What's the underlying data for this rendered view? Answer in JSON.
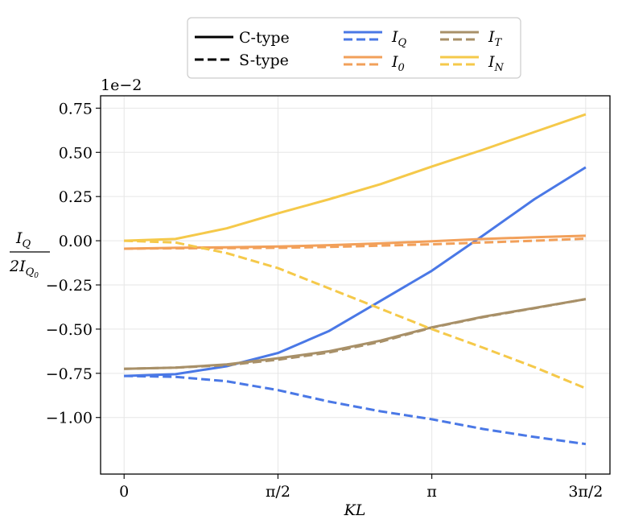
{
  "chart_data": {
    "type": "line",
    "xlabel": "KL",
    "ylabel": {
      "numerator": "I",
      "numerator_sub": "Q",
      "denominator": "2I",
      "denominator_sub": "Q",
      "denominator_subsub": "0"
    },
    "offset_text": "1e−2",
    "x_ticks": [
      {
        "value": 0,
        "label": "0"
      },
      {
        "value": 1.5708,
        "label": "π/2"
      },
      {
        "value": 3.1416,
        "label": "π"
      },
      {
        "value": 4.7124,
        "label": "3π/2"
      }
    ],
    "y_ticks": [
      {
        "value": 0.75,
        "label": "0.75"
      },
      {
        "value": 0.5,
        "label": "0.50"
      },
      {
        "value": 0.25,
        "label": "0.25"
      },
      {
        "value": 0.0,
        "label": "0.00"
      },
      {
        "value": -0.25,
        "label": "−0.25"
      },
      {
        "value": -0.5,
        "label": "−0.50"
      },
      {
        "value": -0.75,
        "label": "−0.75"
      },
      {
        "value": -1.0,
        "label": "−1.00"
      }
    ],
    "xlim": [
      -0.24,
      4.96
    ],
    "ylim": [
      -1.32,
      0.82
    ],
    "grid": true,
    "legend": {
      "placement": "top-center",
      "style_entries": [
        {
          "label": "C-type",
          "dash": "solid"
        },
        {
          "label": "S-type",
          "dash": "dashed"
        }
      ]
    },
    "x": [
      0,
      0.5236,
      1.0472,
      1.5708,
      2.0944,
      2.618,
      3.1416,
      3.6652,
      4.1888,
      4.7124
    ],
    "series": [
      {
        "name": "I",
        "sub": "Q",
        "color": "#4a78e6",
        "style": "solid",
        "values": [
          -0.765,
          -0.755,
          -0.71,
          -0.635,
          -0.51,
          -0.34,
          -0.17,
          0.03,
          0.235,
          0.415
        ]
      },
      {
        "name": "I",
        "sub": "Q",
        "color": "#4a78e6",
        "style": "dashed",
        "values": [
          -0.765,
          -0.77,
          -0.795,
          -0.845,
          -0.91,
          -0.965,
          -1.01,
          -1.065,
          -1.11,
          -1.15
        ]
      },
      {
        "name": "I",
        "sub": "0",
        "color": "#f2a05a",
        "style": "solid",
        "values": [
          -0.045,
          -0.04,
          -0.037,
          -0.033,
          -0.025,
          -0.015,
          -0.003,
          0.01,
          0.02,
          0.028
        ]
      },
      {
        "name": "I",
        "sub": "0",
        "color": "#f2a05a",
        "style": "dashed",
        "values": [
          -0.045,
          -0.043,
          -0.042,
          -0.04,
          -0.035,
          -0.028,
          -0.02,
          -0.01,
          0.0,
          0.012
        ]
      },
      {
        "name": "I",
        "sub": "T",
        "color": "#a89068",
        "style": "solid",
        "values": [
          -0.725,
          -0.718,
          -0.7,
          -0.665,
          -0.625,
          -0.565,
          -0.49,
          -0.43,
          -0.38,
          -0.33
        ]
      },
      {
        "name": "I",
        "sub": "T",
        "color": "#a89068",
        "style": "dashed",
        "values": [
          -0.725,
          -0.718,
          -0.704,
          -0.673,
          -0.632,
          -0.572,
          -0.492,
          -0.432,
          -0.382,
          -0.33
        ]
      },
      {
        "name": "I",
        "sub": "N",
        "color": "#f5c94a",
        "style": "solid",
        "values": [
          0.0,
          0.01,
          0.07,
          0.155,
          0.235,
          0.32,
          0.42,
          0.515,
          0.615,
          0.715
        ]
      },
      {
        "name": "I",
        "sub": "N",
        "color": "#f5c94a",
        "style": "dashed",
        "values": [
          0.0,
          -0.01,
          -0.07,
          -0.155,
          -0.27,
          -0.385,
          -0.5,
          -0.605,
          -0.715,
          -0.835
        ]
      }
    ]
  }
}
